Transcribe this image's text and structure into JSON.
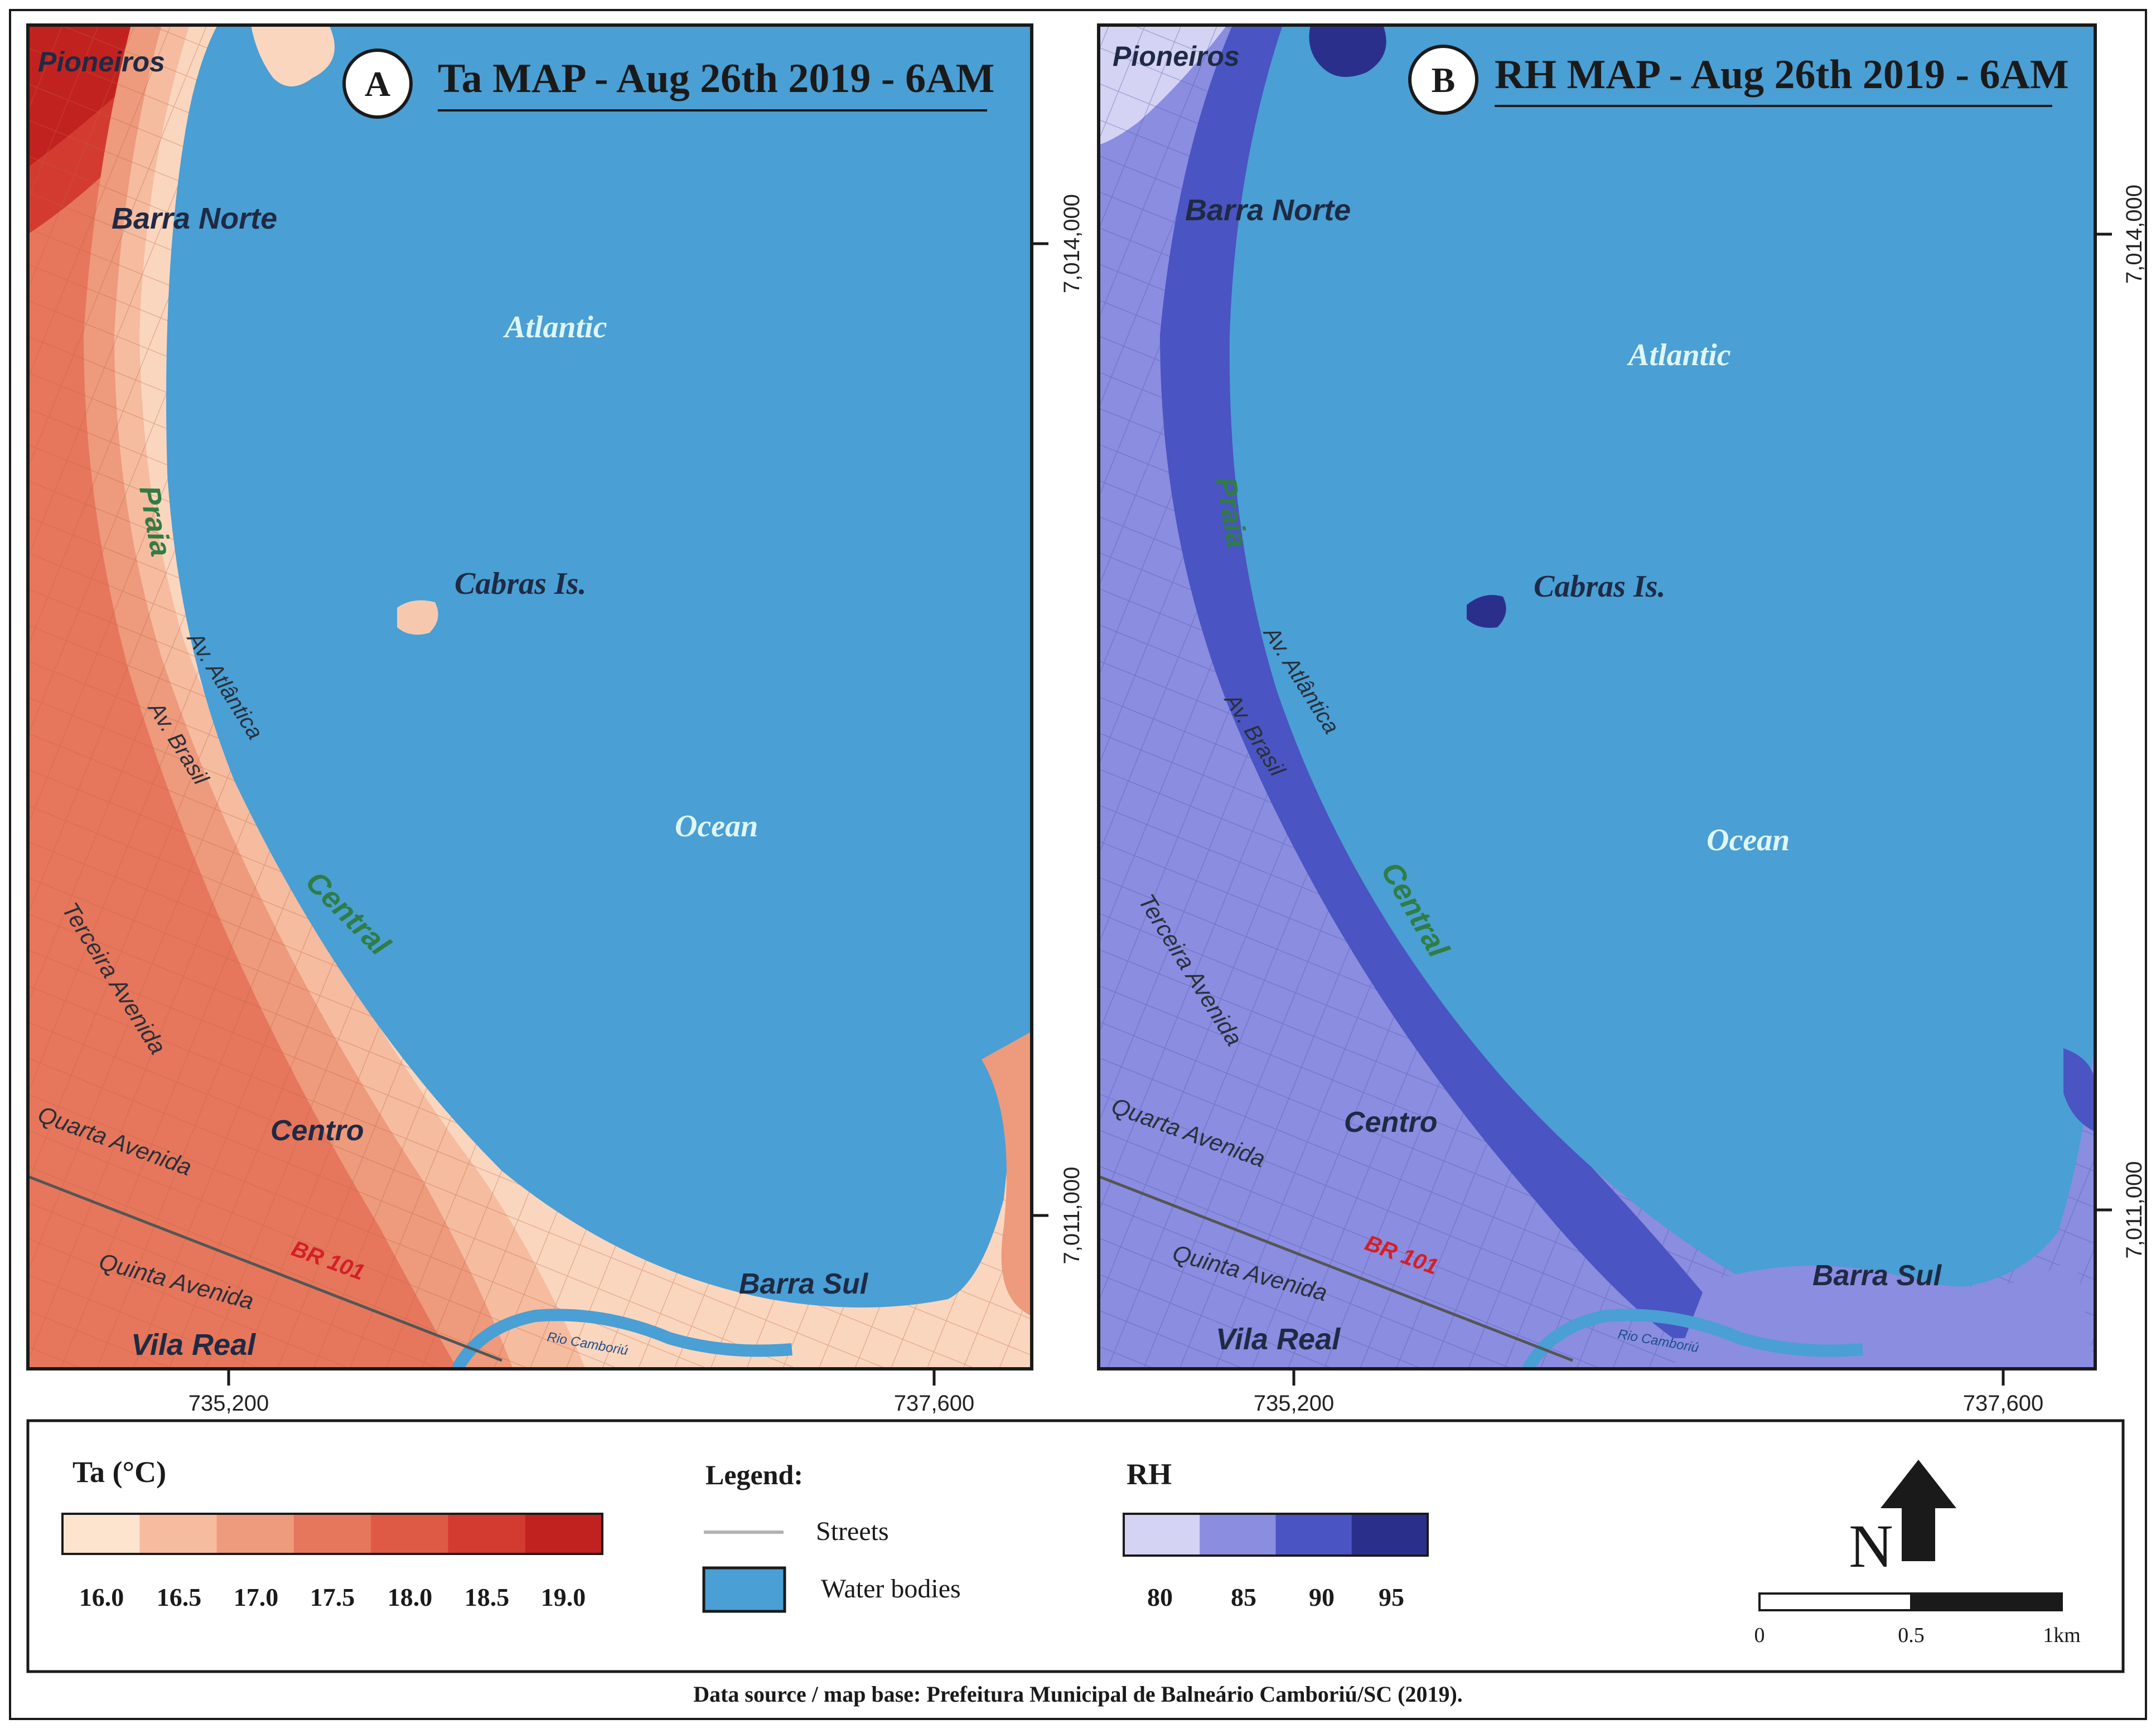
{
  "maps": [
    {
      "badge": "A",
      "title": "Ta MAP - Aug 26th 2019 - 6AM",
      "labels": {
        "pioneiros": "Pioneiros",
        "barra_norte": "Barra Norte",
        "atlantic": "Atlantic",
        "praia": "Praia",
        "cabras": "Cabras Is.",
        "av_atlantica": "Av. Atlântica",
        "av_brasil": "Av. Brasil",
        "ocean": "Ocean",
        "central": "Central",
        "terceira": "Terceira Avenida",
        "centro": "Centro",
        "quarta": "Quarta Avenida",
        "br101": "BR 101",
        "quinta": "Quinta Avenida",
        "barra_sul": "Barra Sul",
        "vila_real": "Vila Real",
        "river": "Rio Camboriú"
      },
      "x_ticks": [
        "735,200",
        "737,600"
      ],
      "y_ticks": [
        "7,014,000",
        "7,011,000"
      ]
    },
    {
      "badge": "B",
      "title": "RH MAP - Aug 26th 2019 - 6AM",
      "labels": {
        "pioneiros": "Pioneiros",
        "barra_norte": "Barra Norte",
        "atlantic": "Atlantic",
        "praia": "Praia",
        "cabras": "Cabras Is.",
        "av_atlantica": "Av. Atlântica",
        "av_brasil": "Av. Brasil",
        "ocean": "Ocean",
        "central": "Central",
        "terceira": "Terceira Avenida",
        "centro": "Centro",
        "quarta": "Quarta Avenida",
        "br101": "BR 101",
        "quinta": "Quinta Avenida",
        "barra_sul": "Barra Sul",
        "vila_real": "Vila Real",
        "river": "Rio Camboriú"
      },
      "x_ticks": [
        "735,200",
        "737,600"
      ],
      "y_ticks": [
        "7,014,000",
        "7,011,000"
      ]
    }
  ],
  "legend": {
    "ta": {
      "title": "Ta (°C)",
      "ticks": [
        "16.0",
        "16.5",
        "17.0",
        "17.5",
        "18.0",
        "18.5",
        "19.0"
      ],
      "colors": [
        "#fde4cf",
        "#f6bca0",
        "#ee9a7c",
        "#e6775c",
        "#de5a45",
        "#d33b30",
        "#c2221f"
      ]
    },
    "key": {
      "title": "Legend:",
      "streets": "Streets",
      "water": "Water bodies"
    },
    "rh": {
      "title": "RH",
      "ticks": [
        "80",
        "85",
        "90",
        "95"
      ],
      "colors": [
        "#d4d3f3",
        "#8a8de0",
        "#4a54c2",
        "#2b2f8c"
      ]
    },
    "north": "N",
    "scale": {
      "ticks": [
        "0",
        "0.5",
        "1km"
      ]
    }
  },
  "colors": {
    "water": "#4a9fd4",
    "frame": "#1a1a1a"
  },
  "source": "Data source / map base: Prefeitura Municipal de Balneário Camboriú/SC (2019)."
}
